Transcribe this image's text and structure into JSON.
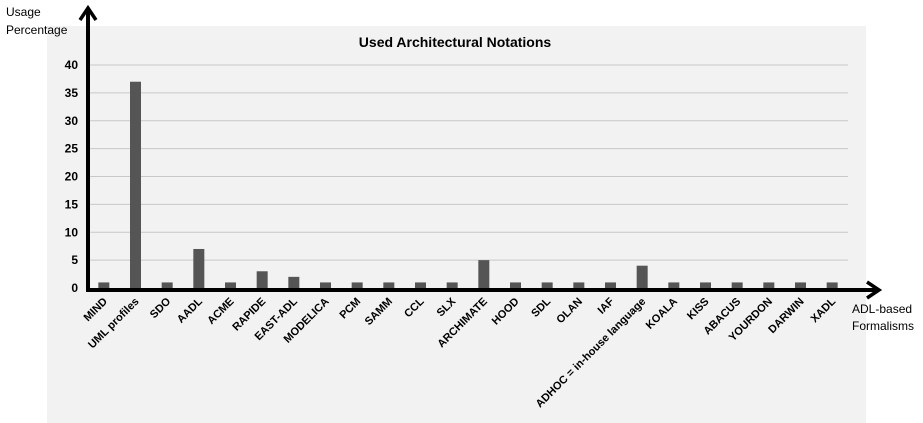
{
  "chart_data": {
    "type": "bar",
    "title": "Used Architectural Notations",
    "ylabel": [
      "Usage",
      "Percentage"
    ],
    "xlabel": [
      "ADL-based",
      "Formalisms"
    ],
    "ylim": [
      0,
      40
    ],
    "yticks": [
      0,
      5,
      10,
      15,
      20,
      25,
      30,
      35,
      40
    ],
    "grid": true,
    "categories": [
      "MIND",
      "UML profiles",
      "SDO",
      "AADL",
      "ACME",
      "RAPIDE",
      "EAST-ADL",
      "MODELICA",
      "PCM",
      "SAMM",
      "CCL",
      "SLX",
      "ARCHIMATE",
      "HOOD",
      "SDL",
      "OLAN",
      "IAF",
      "ADHOC = in-house language",
      "KOALA",
      "KISS",
      "ABACUS",
      "YOURDON",
      "DARWIN",
      "XADL"
    ],
    "values": [
      1,
      37,
      1,
      7,
      1,
      3,
      2,
      1,
      1,
      1,
      1,
      1,
      5,
      1,
      1,
      1,
      1,
      4,
      1,
      1,
      1,
      1,
      1,
      1
    ],
    "colors": {
      "plot_bg": "#f2f2f2",
      "bar": "#555555",
      "grid": "#c8c8c8",
      "axis": "#000000"
    }
  }
}
